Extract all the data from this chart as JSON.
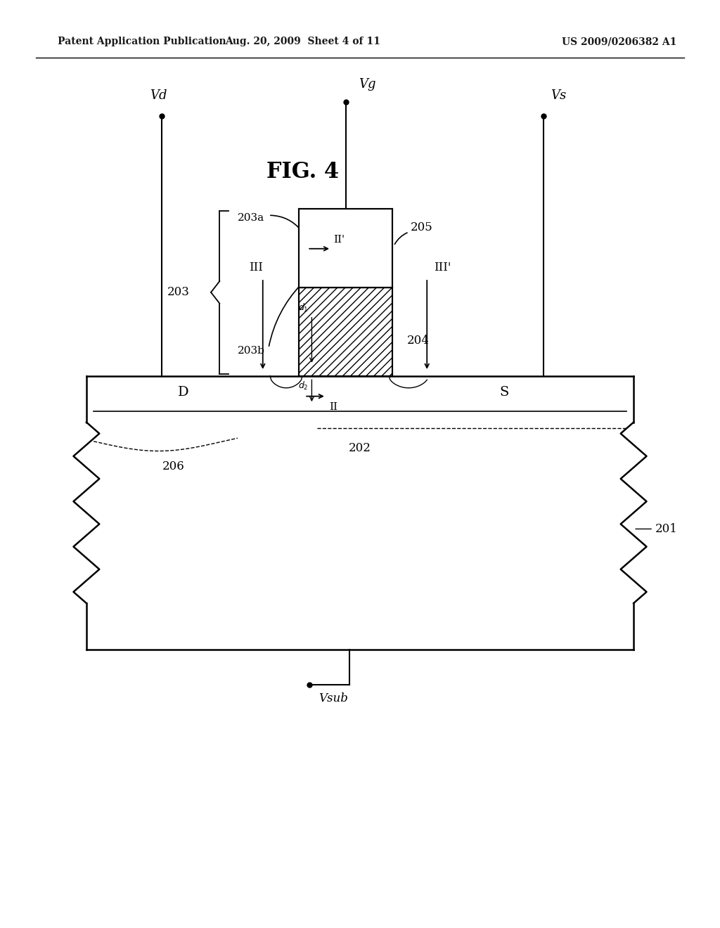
{
  "bg_color": "#ffffff",
  "header_left": "Patent Application Publication",
  "header_mid": "Aug. 20, 2009  Sheet 4 of 11",
  "header_right": "US 2009/0206382 A1",
  "fig_title": "FIG. 4",
  "label_203": "203",
  "label_203a": "203a",
  "label_203b": "203b",
  "label_204": "204",
  "label_205": "205",
  "label_III": "III",
  "label_IIprime": "II'",
  "label_IIIprime": "III'",
  "label_II": "II",
  "label_d1": "d1",
  "label_d2": "d2",
  "vg_label": "Vg",
  "vd_label": "Vd",
  "vs_label": "Vs",
  "vsub_label": "Vsub",
  "drain_label": "D",
  "source_label": "S",
  "channel_label": "202",
  "well_label": "206",
  "substrate_label": "201"
}
